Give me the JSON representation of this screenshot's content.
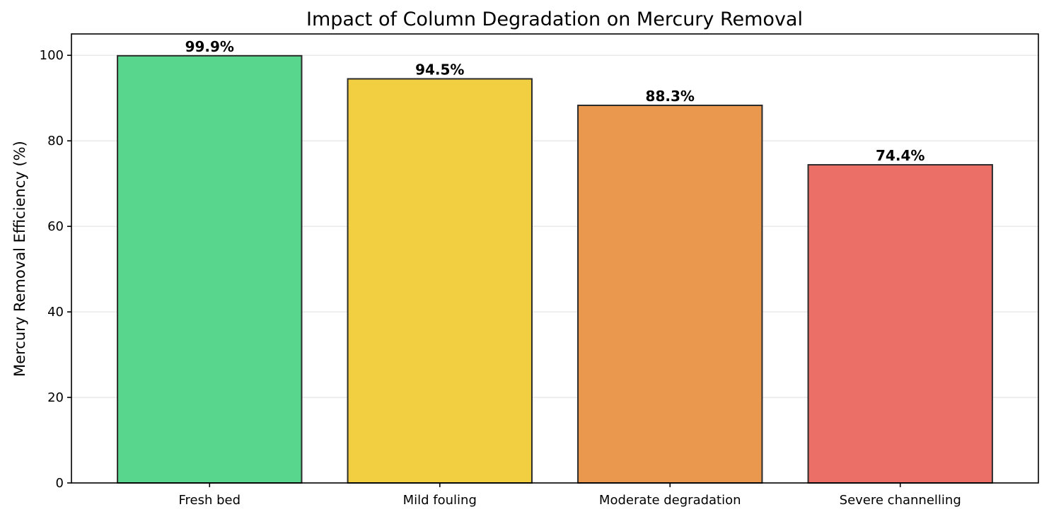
{
  "chart_data": {
    "type": "bar",
    "title": "Impact of Column Degradation on Mercury Removal",
    "xlabel": "",
    "ylabel": "Mercury Removal Efficiency (%)",
    "categories": [
      "Fresh bed",
      "Mild fouling",
      "Moderate degradation",
      "Severe channelling"
    ],
    "values": [
      99.9,
      94.5,
      88.3,
      74.4
    ],
    "value_labels": [
      "99.9%",
      "94.5%",
      "88.3%",
      "74.4%"
    ],
    "bar_colors": [
      "#58d68d",
      "#f2cf40",
      "#ea984e",
      "#eb6f66"
    ],
    "edge_color": "#2b2b2b",
    "ylim": [
      0,
      105
    ],
    "yticks": [
      0,
      20,
      40,
      60,
      80,
      100
    ],
    "ytick_labels": [
      "0",
      "20",
      "40",
      "60",
      "80",
      "100"
    ],
    "grid": "horizontal",
    "legend": "none"
  }
}
